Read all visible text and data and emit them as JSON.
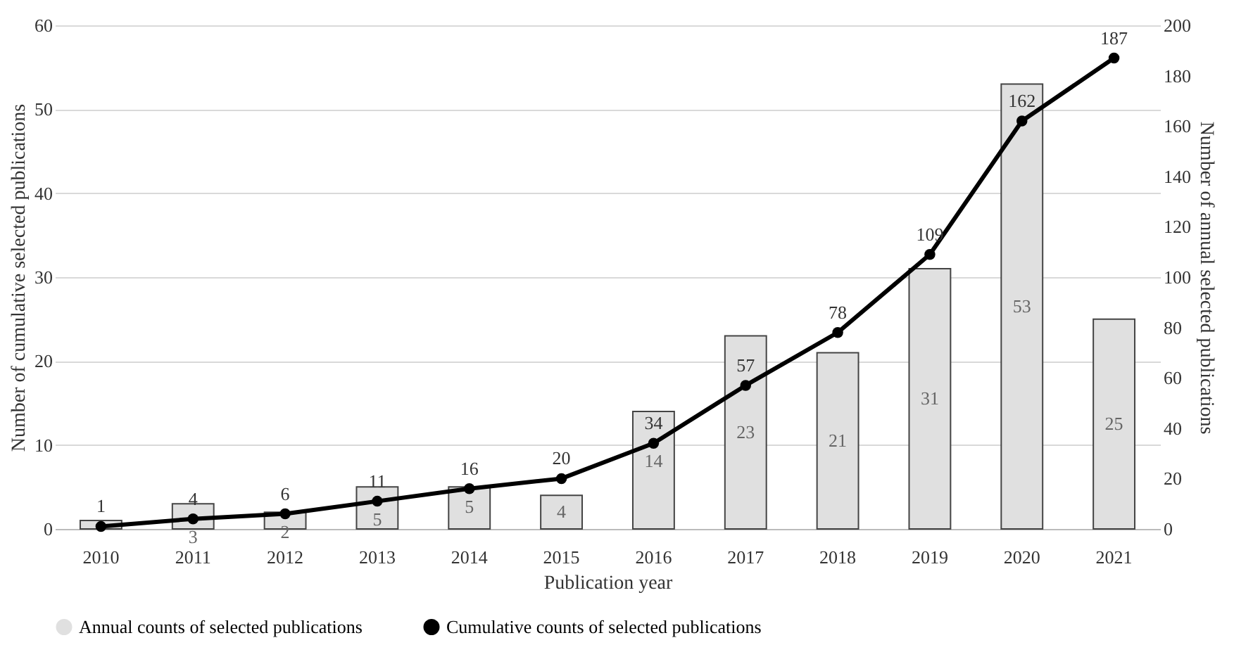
{
  "chart_data": {
    "type": "bar",
    "xlabel": "Publication year",
    "ylabel": "Number of cumulative selected publications",
    "y2label": "Number of annual selected publications",
    "categories": [
      "2010",
      "2011",
      "2012",
      "2013",
      "2014",
      "2015",
      "2016",
      "2017",
      "2018",
      "2019",
      "2020",
      "2021"
    ],
    "series": [
      {
        "name": "Annual counts of selected publications",
        "color": "#e0e0e0",
        "values": [
          1,
          3,
          2,
          5,
          5,
          4,
          14,
          23,
          21,
          31,
          53,
          25
        ],
        "value_labels": [
          null,
          "3",
          "2",
          "5",
          "5",
          "4",
          "14",
          "23",
          "21",
          "31",
          "53",
          "25"
        ]
      },
      {
        "name": "Cumulative counts of selected publications",
        "type": "line",
        "axis": "y2",
        "color": "#000000",
        "values": [
          1,
          4,
          6,
          11,
          16,
          20,
          34,
          57,
          78,
          109,
          162,
          187
        ]
      }
    ],
    "ylim": [
      0,
      60
    ],
    "yticks": [
      0,
      10,
      20,
      30,
      40,
      50,
      60
    ],
    "y2lim": [
      0,
      200
    ],
    "y2ticks": [
      0,
      20,
      40,
      60,
      80,
      100,
      120,
      140,
      160,
      180,
      200
    ],
    "grid": "y",
    "legend": "bottom",
    "data_labels": true,
    "marker": "circle"
  }
}
